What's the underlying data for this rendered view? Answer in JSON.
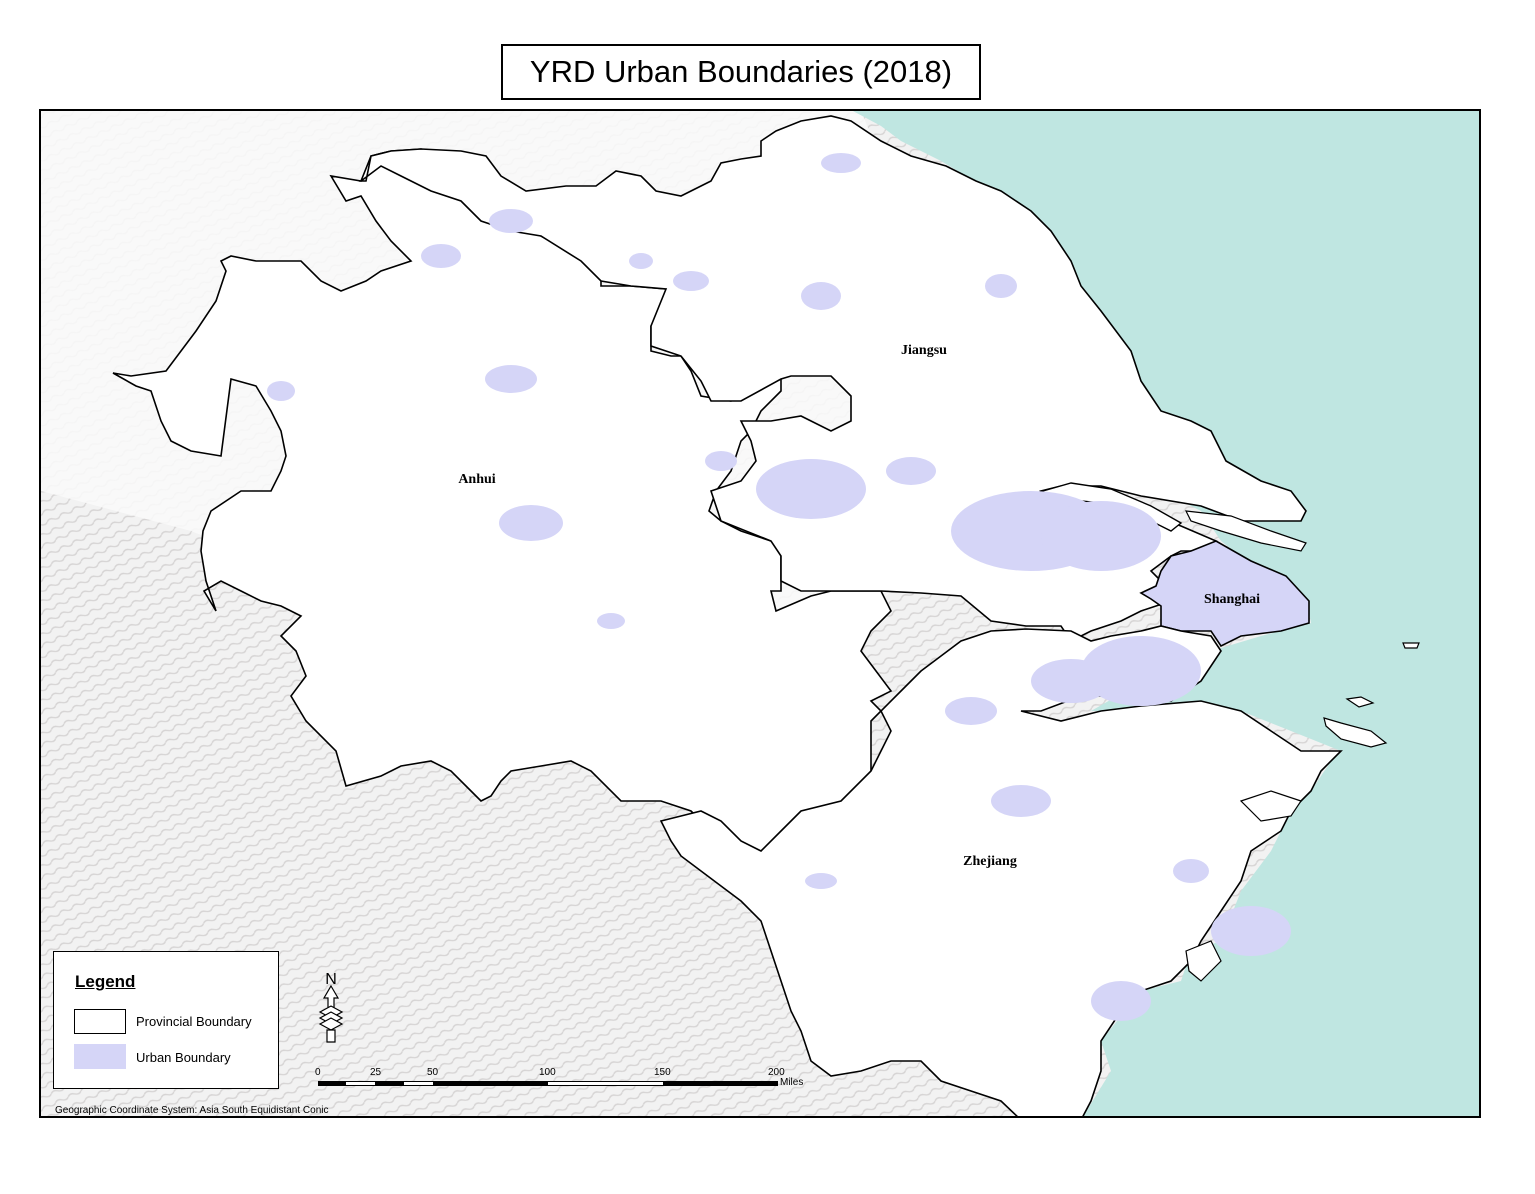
{
  "title": "YRD Urban Boundaries (2018)",
  "provinces": [
    {
      "name": "Anhui"
    },
    {
      "name": "Jiangsu"
    },
    {
      "name": "Shanghai"
    },
    {
      "name": "Zhejiang"
    }
  ],
  "legend": {
    "title": "Legend",
    "items": [
      {
        "label": "Provincial Boundary",
        "fill": "#ffffff",
        "stroke": "#000000"
      },
      {
        "label": "Urban Boundary",
        "fill": "#d5d5f7",
        "stroke": "none"
      }
    ]
  },
  "scale_bar": {
    "ticks": [
      "0",
      "25",
      "50",
      "100",
      "150",
      "200"
    ],
    "unit": "Miles"
  },
  "north_arrow": {
    "label": "N",
    "icon": "north-arrow-icon"
  },
  "coordinate_system": "Geographic Coordinate System: Asia South Equidistant Conic",
  "colors": {
    "sea": "#bfe6e1",
    "land": "#ffffff",
    "urban": "#d5d5f7",
    "terrain": "#dcdcdc",
    "boundary": "#000000"
  }
}
